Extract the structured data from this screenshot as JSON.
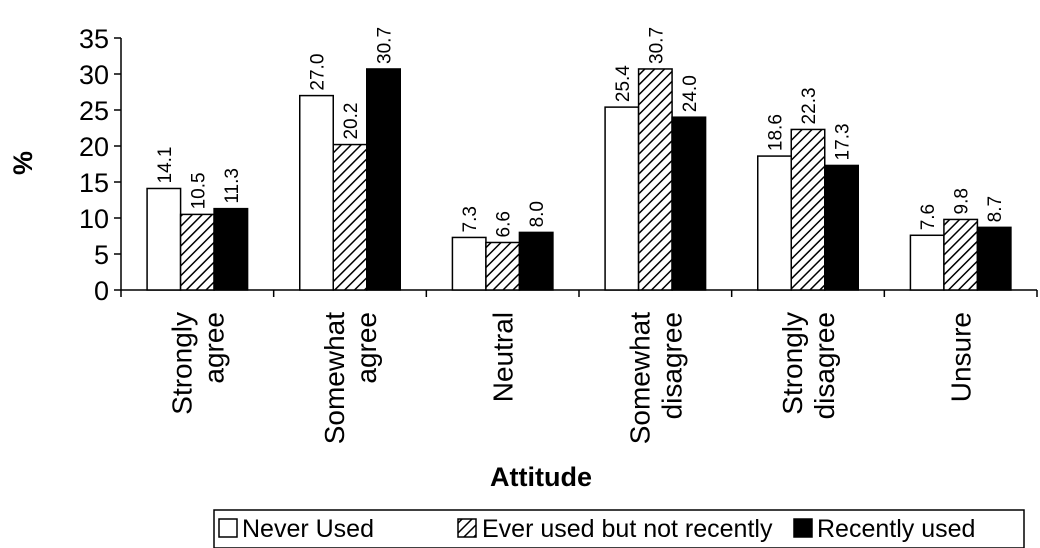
{
  "chart_data": {
    "type": "bar",
    "title": "",
    "xlabel": "Attitude",
    "ylabel": "%",
    "ylim": [
      0,
      35
    ],
    "yticks": [
      0,
      5,
      10,
      15,
      20,
      25,
      30,
      35
    ],
    "grid": false,
    "legend_position": "bottom",
    "categories": [
      [
        "Strongly",
        "agree"
      ],
      [
        "Somewhat",
        "agree"
      ],
      [
        "Neutral"
      ],
      [
        "Somewhat",
        "disagree"
      ],
      [
        "Strongly",
        "disagree"
      ],
      [
        "Unsure"
      ]
    ],
    "series": [
      {
        "name": "Never Used",
        "style": "white",
        "values": [
          14.1,
          27.0,
          7.3,
          25.4,
          18.6,
          7.6
        ]
      },
      {
        "name": "Ever used but not recently",
        "style": "hatched",
        "values": [
          10.5,
          20.2,
          6.6,
          30.7,
          22.3,
          9.8
        ]
      },
      {
        "name": "Recently used",
        "style": "black",
        "values": [
          11.3,
          30.7,
          8.0,
          24.0,
          17.3,
          8.7
        ]
      }
    ]
  }
}
